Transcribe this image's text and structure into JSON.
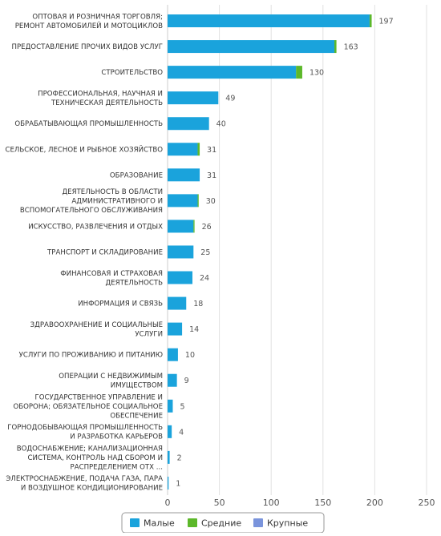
{
  "chart_data": {
    "type": "bar",
    "orientation": "horizontal",
    "stacked": true,
    "categories": [
      "ОПТОВАЯ И РОЗНИЧНАЯ ТОРГОВЛЯ; РЕМОНТ АВТОМОБИЛЕЙ И МОТОЦИКЛОВ",
      "ПРЕДОСТАВЛЕНИЕ ПРОЧИХ ВИДОВ УСЛУГ",
      "СТРОИТЕЛЬСТВО",
      "ПРОФЕССИОНАЛЬНАЯ, НАУЧНАЯ И ТЕХНИЧЕСКАЯ ДЕЯТЕЛЬНОСТЬ",
      "ОБРАБАТЫВАЮЩАЯ ПРОМЫШЛЕННОСТЬ",
      "СЕЛЬСКОЕ, ЛЕСНОЕ И РЫБНОЕ ХОЗЯЙСТВО",
      "ОБРАЗОВАНИЕ",
      "ДЕЯТЕЛЬНОСТЬ В ОБЛАСТИ АДМИНИСТРАТИВНОГО И ВСПОМОГАТЕЛЬНОГО ОБСЛУЖИВАНИЯ",
      "ИСКУССТВО, РАЗВЛЕЧЕНИЯ И ОТДЫХ",
      "ТРАНСПОРТ И СКЛАДИРОВАНИЕ",
      "ФИНАНСОВАЯ И СТРАХОВАЯ ДЕЯТЕЛЬНОСТЬ",
      "ИНФОРМАЦИЯ И СВЯЗЬ",
      "ЗДРАВООХРАНЕНИЕ И СОЦИАЛЬНЫЕ УСЛУГИ",
      "УСЛУГИ ПО ПРОЖИВАНИЮ И ПИТАНИЮ",
      "ОПЕРАЦИИ С НЕДВИЖИМЫМ ИМУЩЕСТВОМ",
      "ГОСУДАРСТВЕННОЕ УПРАВЛЕНИЕ И ОБОРОНА; ОБЯЗАТЕЛЬНОЕ СОЦИАЛЬНОЕ ОБЕСПЕЧЕНИЕ",
      "ГОРНОДОБЫВАЮЩАЯ ПРОМЫШЛЕННОСТЬ И РАЗРАБОТКА КАРЬЕРОВ",
      "ВОДОСНАБЖЕНИЕ; КАНАЛИЗАЦИОННАЯ СИСТЕМА, КОНТРОЛЬ НАД СБОРОМ И РАСПРЕДЕЛЕНИЕМ ОТХ ...",
      "ЭЛЕКТРОСНАБЖЕНИЕ, ПОДАЧА ГАЗА, ПАРА И ВОЗДУШНОЕ КОНДИЦИОНИРОВАНИЕ"
    ],
    "category_label_lines": [
      [
        "ОПТОВАЯ И РОЗНИЧНАЯ ТОРГОВЛЯ;",
        "РЕМОНТ АВТОМОБИЛЕЙ И МОТОЦИКЛОВ"
      ],
      [
        "ПРЕДОСТАВЛЕНИЕ ПРОЧИХ ВИДОВ УСЛУГ"
      ],
      [
        "СТРОИТЕЛЬСТВО"
      ],
      [
        "ПРОФЕССИОНАЛЬНАЯ, НАУЧНАЯ И",
        "ТЕХНИЧЕСКАЯ ДЕЯТЕЛЬНОСТЬ"
      ],
      [
        "ОБРАБАТЫВАЮЩАЯ ПРОМЫШЛЕННОСТЬ"
      ],
      [
        "СЕЛЬСКОЕ, ЛЕСНОЕ И РЫБНОЕ ХОЗЯЙСТВО"
      ],
      [
        "ОБРАЗОВАНИЕ"
      ],
      [
        "ДЕЯТЕЛЬНОСТЬ В ОБЛАСТИ",
        "АДМИНИСТРАТИВНОГО И",
        "ВСПОМОГАТЕЛЬНОГО ОБСЛУЖИВАНИЯ"
      ],
      [
        "ИСКУССТВО, РАЗВЛЕЧЕНИЯ И ОТДЫХ"
      ],
      [
        "ТРАНСПОРТ И СКЛАДИРОВАНИЕ"
      ],
      [
        "ФИНАНСОВАЯ И СТРАХОВАЯ",
        "ДЕЯТЕЛЬНОСТЬ"
      ],
      [
        "ИНФОРМАЦИЯ И СВЯЗЬ"
      ],
      [
        "ЗДРАВООХРАНЕНИЕ И СОЦИАЛЬНЫЕ",
        "УСЛУГИ"
      ],
      [
        "УСЛУГИ ПО ПРОЖИВАНИЮ И ПИТАНИЮ"
      ],
      [
        "ОПЕРАЦИИ С НЕДВИЖИМЫМ",
        "ИМУЩЕСТВОМ"
      ],
      [
        "ГОСУДАРСТВЕННОЕ УПРАВЛЕНИЕ И",
        "ОБОРОНА; ОБЯЗАТЕЛЬНОЕ СОЦИАЛЬНОЕ",
        "ОБЕСПЕЧЕНИЕ"
      ],
      [
        "ГОРНОДОБЫВАЮЩАЯ ПРОМЫШЛЕННОСТЬ",
        "И РАЗРАБОТКА КАРЬЕРОВ"
      ],
      [
        "ВОДОСНАБЖЕНИЕ; КАНАЛИЗАЦИОННАЯ",
        "СИСТЕМА, КОНТРОЛЬ НАД СБОРОМ И",
        "РАСПРЕДЕЛЕНИЕМ ОТХ ..."
      ],
      [
        "ЭЛЕКТРОСНАБЖЕНИЕ, ПОДАЧА ГАЗА, ПАРА",
        "И ВОЗДУШНОЕ КОНДИЦИОНИРОВАНИЕ"
      ]
    ],
    "series": [
      {
        "name": "Малые",
        "color": "#1aa3dc",
        "values": [
          195,
          161,
          124,
          49,
          40,
          29,
          31,
          29,
          25,
          25,
          24,
          18,
          14,
          10,
          9,
          5,
          4,
          2,
          1
        ]
      },
      {
        "name": "Средние",
        "color": "#5cb82a",
        "values": [
          2,
          2,
          6,
          0,
          0,
          2,
          0,
          1,
          1,
          0,
          0,
          0,
          0,
          0,
          0,
          0,
          0,
          0,
          0
        ]
      },
      {
        "name": "Крупные",
        "color": "#7a94dc",
        "values": [
          0,
          0,
          0,
          0,
          0,
          0,
          0,
          0,
          0,
          0,
          0,
          0,
          0,
          0,
          0,
          0,
          0,
          0,
          0
        ]
      }
    ],
    "totals": [
      197,
      163,
      130,
      49,
      40,
      31,
      31,
      30,
      26,
      25,
      24,
      18,
      14,
      10,
      9,
      5,
      4,
      2,
      1
    ],
    "xlim": [
      0,
      250
    ],
    "xticks": [
      0,
      50,
      100,
      150,
      200,
      250
    ],
    "grid": true,
    "legend_position": "bottom"
  }
}
